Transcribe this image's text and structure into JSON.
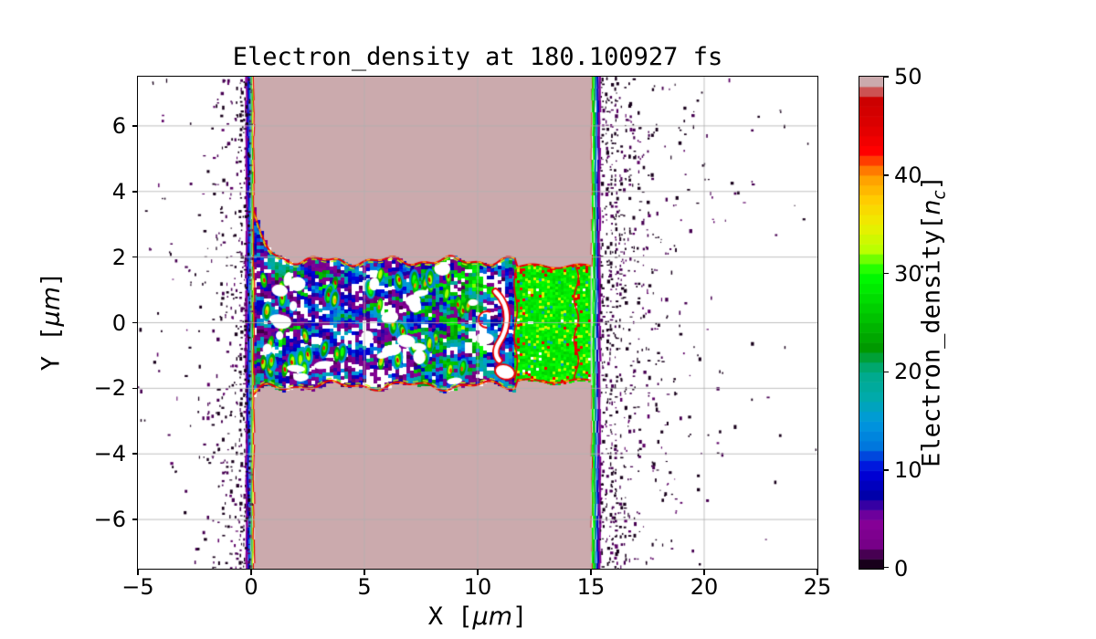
{
  "title": {
    "text": "Electron_density at 180.100927 fs"
  },
  "axes": {
    "x_label": {
      "prefix": "X [",
      "unit": "μm",
      "suffix": "]"
    },
    "y_label": {
      "prefix": "Y [",
      "unit": "μm",
      "suffix": "]"
    },
    "x_ticks": [
      {
        "v": -5,
        "label": "−5"
      },
      {
        "v": 0,
        "label": "0"
      },
      {
        "v": 5,
        "label": "5"
      },
      {
        "v": 10,
        "label": "10"
      },
      {
        "v": 15,
        "label": "15"
      },
      {
        "v": 20,
        "label": "20"
      },
      {
        "v": 25,
        "label": "25"
      }
    ],
    "y_ticks": [
      {
        "v": 6,
        "label": "6"
      },
      {
        "v": 4,
        "label": "4"
      },
      {
        "v": 2,
        "label": "2"
      },
      {
        "v": 0,
        "label": "0"
      },
      {
        "v": -2,
        "label": "−2"
      },
      {
        "v": -4,
        "label": "−4"
      },
      {
        "v": -6,
        "label": "−6"
      }
    ],
    "x_range": [
      -5,
      25
    ],
    "y_range": [
      -7.5,
      7.5
    ],
    "grid_color": "#b0b0b0",
    "spine_color": "#000000"
  },
  "colorbar": {
    "ticks": [
      {
        "v": 0,
        "label": "0"
      },
      {
        "v": 10,
        "label": "10"
      },
      {
        "v": 20,
        "label": "20"
      },
      {
        "v": 30,
        "label": "30"
      },
      {
        "v": 40,
        "label": "40"
      },
      {
        "v": 50,
        "label": "50"
      }
    ],
    "range": [
      0,
      50
    ],
    "n_levels": 50,
    "colormap": "nipy_spectral",
    "label": {
      "prefix": "Electron_density[",
      "var": "n",
      "sub": "c",
      "suffix": "]"
    },
    "anchors": [
      [
        0,
        0,
        0
      ],
      [
        0.4667,
        0,
        0.5333
      ],
      [
        0.5333,
        0,
        0.6
      ],
      [
        0,
        0,
        0.6667
      ],
      [
        0,
        0,
        0.8667
      ],
      [
        0,
        0.4667,
        0.8667
      ],
      [
        0,
        0.6,
        0.8667
      ],
      [
        0,
        0.6667,
        0.6667
      ],
      [
        0,
        0.6667,
        0.5333
      ],
      [
        0,
        0.6,
        0
      ],
      [
        0,
        0.7333,
        0
      ],
      [
        0,
        0.8667,
        0
      ],
      [
        0,
        1,
        0
      ],
      [
        0.7333,
        1,
        0
      ],
      [
        0.9333,
        0.9333,
        0
      ],
      [
        1,
        0.8,
        0
      ],
      [
        1,
        0.6,
        0
      ],
      [
        1,
        0,
        0
      ],
      [
        0.8667,
        0,
        0
      ],
      [
        0.8,
        0,
        0
      ],
      [
        0.8,
        0.8,
        0.8
      ]
    ]
  },
  "chart_data": {
    "type": "heatmap",
    "title": "Electron_density at 180.100927 fs",
    "xlabel": "X [μm]",
    "ylabel": "Y [μm]",
    "xlim": [
      -5,
      25
    ],
    "ylim": [
      -7.5,
      7.5
    ],
    "x_ticks": [
      -5,
      0,
      5,
      10,
      15,
      20,
      25
    ],
    "y_ticks": [
      -6,
      -4,
      -2,
      0,
      2,
      4,
      6
    ],
    "grid": true,
    "colorbar": {
      "label": "Electron_density[n_c]",
      "min": 0,
      "max": 50,
      "ticks": [
        0,
        10,
        20,
        30,
        40,
        50
      ],
      "colormap": "nipy_spectral",
      "n_levels": 50
    },
    "features": [
      {
        "name": "target-slab",
        "x": [
          0,
          15
        ],
        "y": [
          -7.5,
          7.5
        ],
        "value_nc": ">=50",
        "color": "#cbaaad",
        "desc": "overdense plasma slab saturated at top of the color scale (rosy gray)"
      },
      {
        "name": "laser-drilled-channel",
        "x": [
          0.1,
          11.65
        ],
        "y": [
          -2.1,
          2.0
        ],
        "value_nc": "0-33",
        "desc": "turbulent under-dense channel: purple/blue/cyan speckle, green-yellow-red plume filaments, white voids; flares open to |y|~3.4 near x=0"
      },
      {
        "name": "channel-rear-plasma",
        "x": [
          11.65,
          15
        ],
        "y": [
          -1.8,
          1.7
        ],
        "value_nc": "26-34",
        "desc": "quasi-uniform bright-green speckle with chartreuse and sparse red flecks"
      },
      {
        "name": "vortex",
        "x": [
          9.95,
          11.65
        ],
        "y": [
          -1.7,
          1.7
        ],
        "value_nc": "0-18",
        "desc": "blue/cyan swirl with white crescent and notch outlined in red"
      },
      {
        "name": "front-surface-ramp",
        "x": [
          -0.2,
          0.14
        ],
        "value_nc": "0-50",
        "desc": "full-height density ramp: purple, blue, cyan, green, yellow, red lines"
      },
      {
        "name": "rear-surface-ramp",
        "x": [
          15.0,
          15.45
        ],
        "value_nc": "50-0",
        "desc": "full-height ramp: red, green, teal, blue, purple lines"
      },
      {
        "name": "channel-boundary-contour",
        "value_nc": "40-50",
        "desc": "red contour line tracing channel walls with orange/yellow-green fringe"
      },
      {
        "name": "blowoff-plasma-left",
        "x": [
          -5,
          -0.1
        ],
        "value_nc": "1-4",
        "desc": "sparse dark-purple droplets, density rising toward the front surface"
      },
      {
        "name": "blowoff-plasma-right",
        "x": [
          15.45,
          25
        ],
        "value_nc": "1-4",
        "desc": "dark-purple droplets, dense column near x=15.5 thinning toward x=25"
      }
    ],
    "render": {
      "seed": 1337,
      "cell": 4,
      "green_cell": 3,
      "slab": {
        "x0": 0.14,
        "x1": 15.02,
        "color": "#cbaaad"
      },
      "funnel": {
        "top_base": 1.88,
        "top_amp": 1.75,
        "top_tau": 0.5,
        "bot_base": 1.92,
        "bot_amp": 0.45,
        "bot_tau": 0.4
      },
      "channel_x": [
        0.12,
        11.68
      ],
      "swirl_x": [
        9.95,
        11.68
      ],
      "green_x": [
        11.65,
        15.0
      ],
      "green_y": [
        -1.78,
        1.72
      ],
      "dot_colors": [
        "#18001b",
        "#470052",
        "#5c0066"
      ],
      "white": "#ffffff"
    }
  }
}
